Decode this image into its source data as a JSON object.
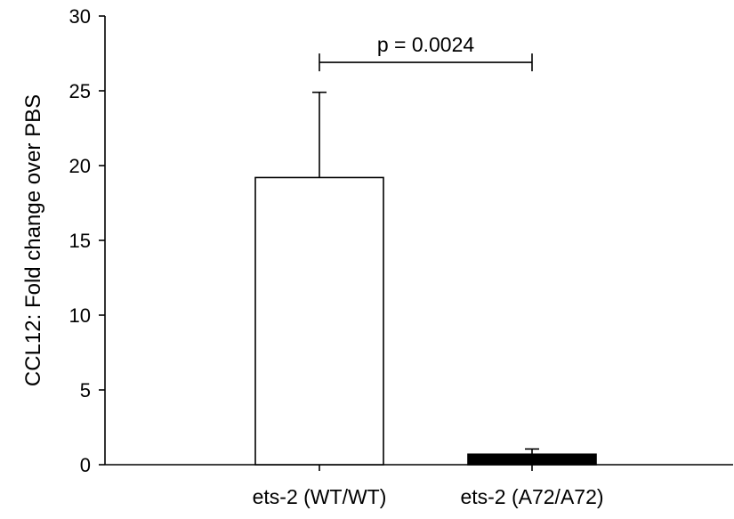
{
  "chart_data": {
    "type": "bar",
    "title": "",
    "xlabel": "",
    "ylabel": "CCL12: Fold change over PBS",
    "ylim": [
      0,
      30
    ],
    "yticks": [
      0,
      5,
      10,
      15,
      20,
      25,
      30
    ],
    "categories": [
      "ets-2 (WT/WT)",
      "ets-2 (A72/A72)"
    ],
    "values": [
      19.2,
      0.7
    ],
    "errors": [
      5.7,
      0.35
    ],
    "bar_colors": [
      "#ffffff",
      "#000000"
    ],
    "bar_edge_color": "#000000",
    "grid": false,
    "annotation": {
      "text": "p = 0.0024",
      "y": 26.9,
      "between": [
        0,
        1
      ]
    }
  }
}
